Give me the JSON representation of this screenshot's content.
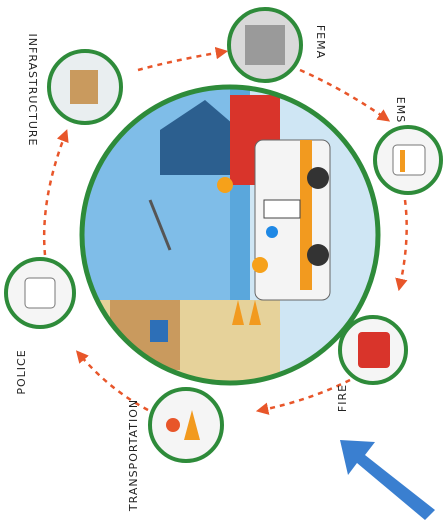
{
  "nodes": [
    {
      "label": "FEMA"
    },
    {
      "label": "EMS"
    },
    {
      "label": "FIRE"
    },
    {
      "label": "TRANSPORTATION"
    },
    {
      "label": "POLICE"
    },
    {
      "label": "INFRASTRUCTURE"
    }
  ]
}
